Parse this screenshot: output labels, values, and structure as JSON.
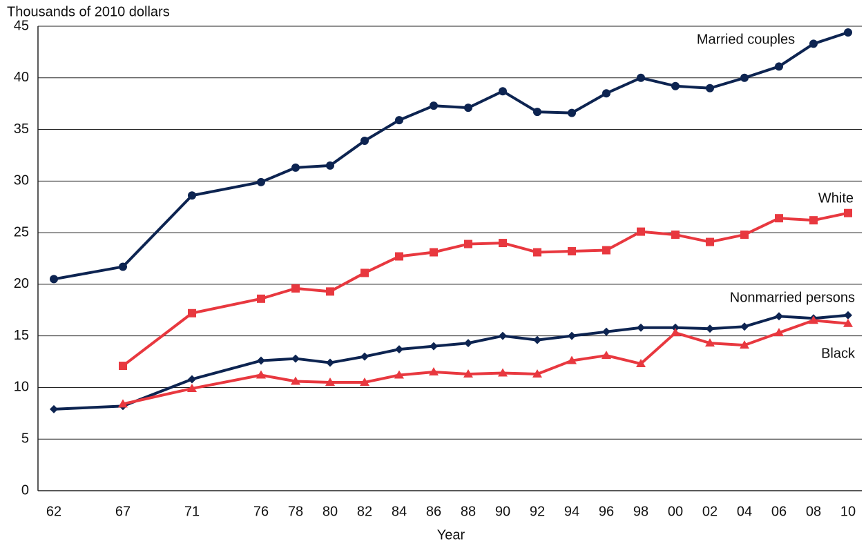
{
  "chart_data": {
    "type": "line",
    "y_axis_label": "Thousands of 2010 dollars",
    "x_axis_label": "Year",
    "categories": [
      "62",
      "67",
      "71",
      "76",
      "78",
      "80",
      "82",
      "84",
      "86",
      "88",
      "90",
      "92",
      "94",
      "96",
      "98",
      "00",
      "02",
      "04",
      "06",
      "08",
      "10"
    ],
    "series": [
      {
        "name": "Married couples",
        "color": "#0d2451",
        "marker": "circle",
        "values": [
          20.5,
          21.7,
          28.6,
          29.9,
          31.3,
          31.5,
          33.9,
          35.9,
          37.3,
          37.1,
          38.7,
          36.7,
          36.6,
          38.5,
          40.0,
          39.2,
          39.0,
          40.0,
          41.1,
          43.3,
          44.4
        ]
      },
      {
        "name": "White",
        "color": "#e8383f",
        "marker": "square",
        "values": [
          null,
          12.1,
          17.2,
          18.6,
          19.6,
          19.3,
          21.1,
          22.7,
          23.1,
          23.9,
          24.0,
          23.1,
          23.2,
          23.3,
          25.1,
          24.8,
          24.1,
          24.8,
          26.4,
          26.2,
          26.9
        ]
      },
      {
        "name": "Nonmarried persons",
        "color": "#0d2451",
        "marker": "diamond",
        "values": [
          7.9,
          8.2,
          10.8,
          12.6,
          12.8,
          12.4,
          13.0,
          13.7,
          14.0,
          14.3,
          15.0,
          14.6,
          15.0,
          15.4,
          15.8,
          15.8,
          15.7,
          15.9,
          16.9,
          16.7,
          17.0
        ]
      },
      {
        "name": "Black",
        "color": "#e8383f",
        "marker": "triangle",
        "values": [
          null,
          8.4,
          9.9,
          11.2,
          10.6,
          10.5,
          10.5,
          11.2,
          11.5,
          11.3,
          11.4,
          11.3,
          12.6,
          13.1,
          12.3,
          15.3,
          14.3,
          14.1,
          15.3,
          16.5,
          16.2
        ]
      }
    ],
    "ylim": [
      0,
      45
    ],
    "yticks": [
      0,
      5,
      10,
      15,
      20,
      25,
      30,
      35,
      40,
      45
    ],
    "grid": true
  }
}
